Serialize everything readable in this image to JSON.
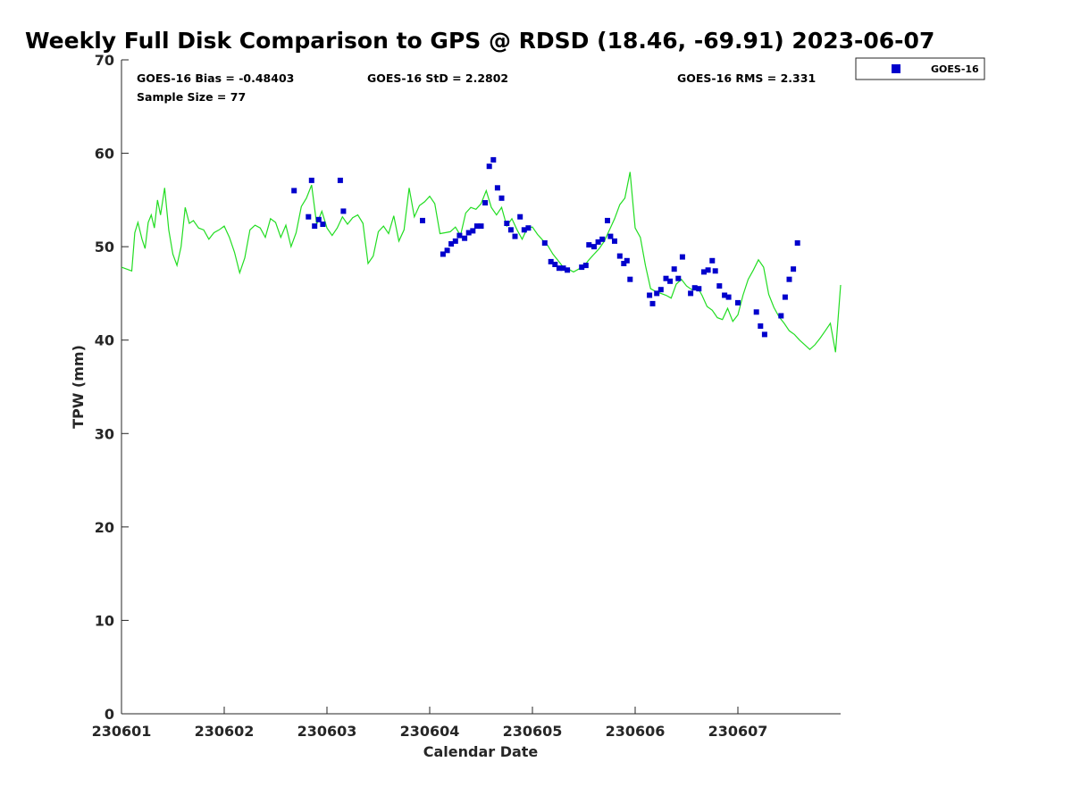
{
  "chart_data": {
    "type": "scatter",
    "title": "Weekly Full Disk Comparison to GPS @ RDSD (18.46, -69.91) 2023-06-07",
    "xlabel": "Calendar Date",
    "ylabel": "TPW (mm)",
    "xlim": [
      0,
      7
    ],
    "ylim": [
      0,
      70
    ],
    "x_ticks": [
      {
        "value": 0,
        "label": "230601"
      },
      {
        "value": 1,
        "label": "230602"
      },
      {
        "value": 2,
        "label": "230603"
      },
      {
        "value": 3,
        "label": "230604"
      },
      {
        "value": 4,
        "label": "230605"
      },
      {
        "value": 5,
        "label": "230606"
      },
      {
        "value": 6,
        "label": "230607"
      }
    ],
    "y_ticks": [
      {
        "value": 0,
        "label": "0"
      },
      {
        "value": 10,
        "label": "10"
      },
      {
        "value": 20,
        "label": "20"
      },
      {
        "value": 30,
        "label": "30"
      },
      {
        "value": 40,
        "label": "40"
      },
      {
        "value": 50,
        "label": "50"
      },
      {
        "value": 60,
        "label": "60"
      },
      {
        "value": 70,
        "label": "70"
      }
    ],
    "stats": {
      "bias": "GOES-16 Bias = -0.48403",
      "std": "GOES-16 StD = 2.2802",
      "rms": "GOES-16 RMS = 2.331",
      "sample": "Sample Size = 77"
    },
    "legend": {
      "label": "GOES-16",
      "position": "top-right"
    },
    "series": [
      {
        "name": "GOES-16",
        "kind": "scatter",
        "color": "#0000cc",
        "x": [
          1.68,
          1.82,
          1.85,
          1.88,
          1.92,
          1.96,
          2.13,
          2.16,
          2.93,
          3.13,
          3.17,
          3.21,
          3.25,
          3.29,
          3.34,
          3.38,
          3.42,
          3.46,
          3.5,
          3.54,
          3.58,
          3.62,
          3.66,
          3.7,
          3.75,
          3.79,
          3.83,
          3.88,
          3.92,
          3.96,
          4.12,
          4.18,
          4.22,
          4.26,
          4.3,
          4.34,
          4.48,
          4.52,
          4.55,
          4.6,
          4.64,
          4.68,
          4.73,
          4.76,
          4.8,
          4.85,
          4.89,
          4.92,
          4.95,
          5.14,
          5.17,
          5.21,
          5.25,
          5.3,
          5.34,
          5.38,
          5.42,
          5.46,
          5.54,
          5.58,
          5.62,
          5.67,
          5.71,
          5.75,
          5.78,
          5.82,
          5.87,
          5.91,
          6.0,
          6.18,
          6.22,
          6.26,
          6.42,
          6.46,
          6.5,
          6.54,
          6.58
        ],
        "y": [
          56.0,
          53.2,
          57.1,
          52.2,
          52.9,
          52.4,
          57.1,
          53.8,
          52.8,
          49.2,
          49.6,
          50.3,
          50.6,
          51.2,
          50.9,
          51.5,
          51.7,
          52.2,
          52.2,
          54.7,
          58.6,
          59.3,
          56.3,
          55.2,
          52.5,
          51.8,
          51.1,
          53.2,
          51.8,
          52.0,
          50.4,
          48.4,
          48.1,
          47.7,
          47.7,
          47.5,
          47.8,
          48.0,
          50.2,
          50.0,
          50.5,
          50.8,
          52.8,
          51.1,
          50.6,
          49.0,
          48.2,
          48.5,
          46.5,
          44.8,
          43.9,
          45.0,
          45.4,
          46.6,
          46.3,
          47.6,
          46.6,
          48.9,
          45.0,
          45.6,
          45.5,
          47.3,
          47.5,
          48.5,
          47.4,
          45.8,
          44.8,
          44.6,
          44.0,
          43.0,
          41.5,
          40.6,
          42.6,
          44.6,
          46.5,
          47.6,
          50.4
        ]
      },
      {
        "name": "GPS",
        "kind": "line",
        "color": "#22dd22",
        "x": [
          0.0,
          0.05,
          0.1,
          0.13,
          0.16,
          0.2,
          0.23,
          0.26,
          0.29,
          0.32,
          0.35,
          0.38,
          0.42,
          0.46,
          0.5,
          0.54,
          0.58,
          0.62,
          0.66,
          0.7,
          0.75,
          0.8,
          0.85,
          0.9,
          0.95,
          1.0,
          1.05,
          1.1,
          1.15,
          1.2,
          1.25,
          1.3,
          1.35,
          1.4,
          1.45,
          1.5,
          1.55,
          1.6,
          1.65,
          1.7,
          1.75,
          1.8,
          1.85,
          1.9,
          1.95,
          2.0,
          2.05,
          2.1,
          2.15,
          2.2,
          2.25,
          2.3,
          2.35,
          2.4,
          2.45,
          2.5,
          2.55,
          2.6,
          2.65,
          2.7,
          2.75,
          2.8,
          2.85,
          2.9,
          2.95,
          3.0,
          3.05,
          3.1,
          3.15,
          3.2,
          3.25,
          3.3,
          3.35,
          3.4,
          3.45,
          3.5,
          3.55,
          3.6,
          3.65,
          3.7,
          3.75,
          3.8,
          3.85,
          3.9,
          3.95,
          4.0,
          4.05,
          4.1,
          4.15,
          4.2,
          4.25,
          4.3,
          4.35,
          4.4,
          4.45,
          4.5,
          4.55,
          4.6,
          4.65,
          4.7,
          4.75,
          4.8,
          4.85,
          4.9,
          4.95,
          5.0,
          5.05,
          5.1,
          5.15,
          5.2,
          5.25,
          5.3,
          5.35,
          5.4,
          5.45,
          5.5,
          5.55,
          5.6,
          5.65,
          5.7,
          5.75,
          5.8,
          5.85,
          5.9,
          5.95,
          6.0,
          6.05,
          6.1,
          6.15,
          6.2,
          6.25,
          6.3,
          6.35,
          6.4,
          6.45,
          6.5,
          6.55,
          6.6,
          6.65,
          6.7,
          6.75,
          6.8,
          6.85,
          6.9,
          6.95,
          7.0
        ],
        "y": [
          47.8,
          47.6,
          47.4,
          51.5,
          52.6,
          50.8,
          49.8,
          52.6,
          53.4,
          52.0,
          55.0,
          53.4,
          56.3,
          51.8,
          49.2,
          48.0,
          50.0,
          54.2,
          52.5,
          52.8,
          52.0,
          51.8,
          50.8,
          51.5,
          51.8,
          52.2,
          51.0,
          49.4,
          47.2,
          48.8,
          51.8,
          52.3,
          52.0,
          51.0,
          53.0,
          52.6,
          51.0,
          52.3,
          50.0,
          51.5,
          54.3,
          55.2,
          56.6,
          52.4,
          53.8,
          52.0,
          51.2,
          52.0,
          53.2,
          52.4,
          53.1,
          53.4,
          52.5,
          48.2,
          49.0,
          51.6,
          52.2,
          51.4,
          53.3,
          50.6,
          51.8,
          56.3,
          53.2,
          54.4,
          54.8,
          55.4,
          54.6,
          51.4,
          51.5,
          51.6,
          52.1,
          51.2,
          53.6,
          54.2,
          54.0,
          54.6,
          56.0,
          54.2,
          53.4,
          54.2,
          52.2,
          53.0,
          51.8,
          50.8,
          52.0,
          52.1,
          51.3,
          50.7,
          50.1,
          49.2,
          48.5,
          47.8,
          47.6,
          47.3,
          47.6,
          47.9,
          48.6,
          49.2,
          49.8,
          50.6,
          51.8,
          53.0,
          54.5,
          55.2,
          58.0,
          52.0,
          51.0,
          48.0,
          45.5,
          45.2,
          45.0,
          44.8,
          44.5,
          46.0,
          46.5,
          45.8,
          45.4,
          45.8,
          44.8,
          43.6,
          43.2,
          42.4,
          42.2,
          43.4,
          42.0,
          42.7,
          44.8,
          46.5,
          47.5,
          48.6,
          47.8,
          44.9,
          43.5,
          42.5,
          41.8,
          41.0,
          40.6,
          40.0,
          39.5,
          39.0,
          39.5,
          40.2,
          41.0,
          41.8,
          38.7,
          45.9
        ]
      }
    ]
  }
}
